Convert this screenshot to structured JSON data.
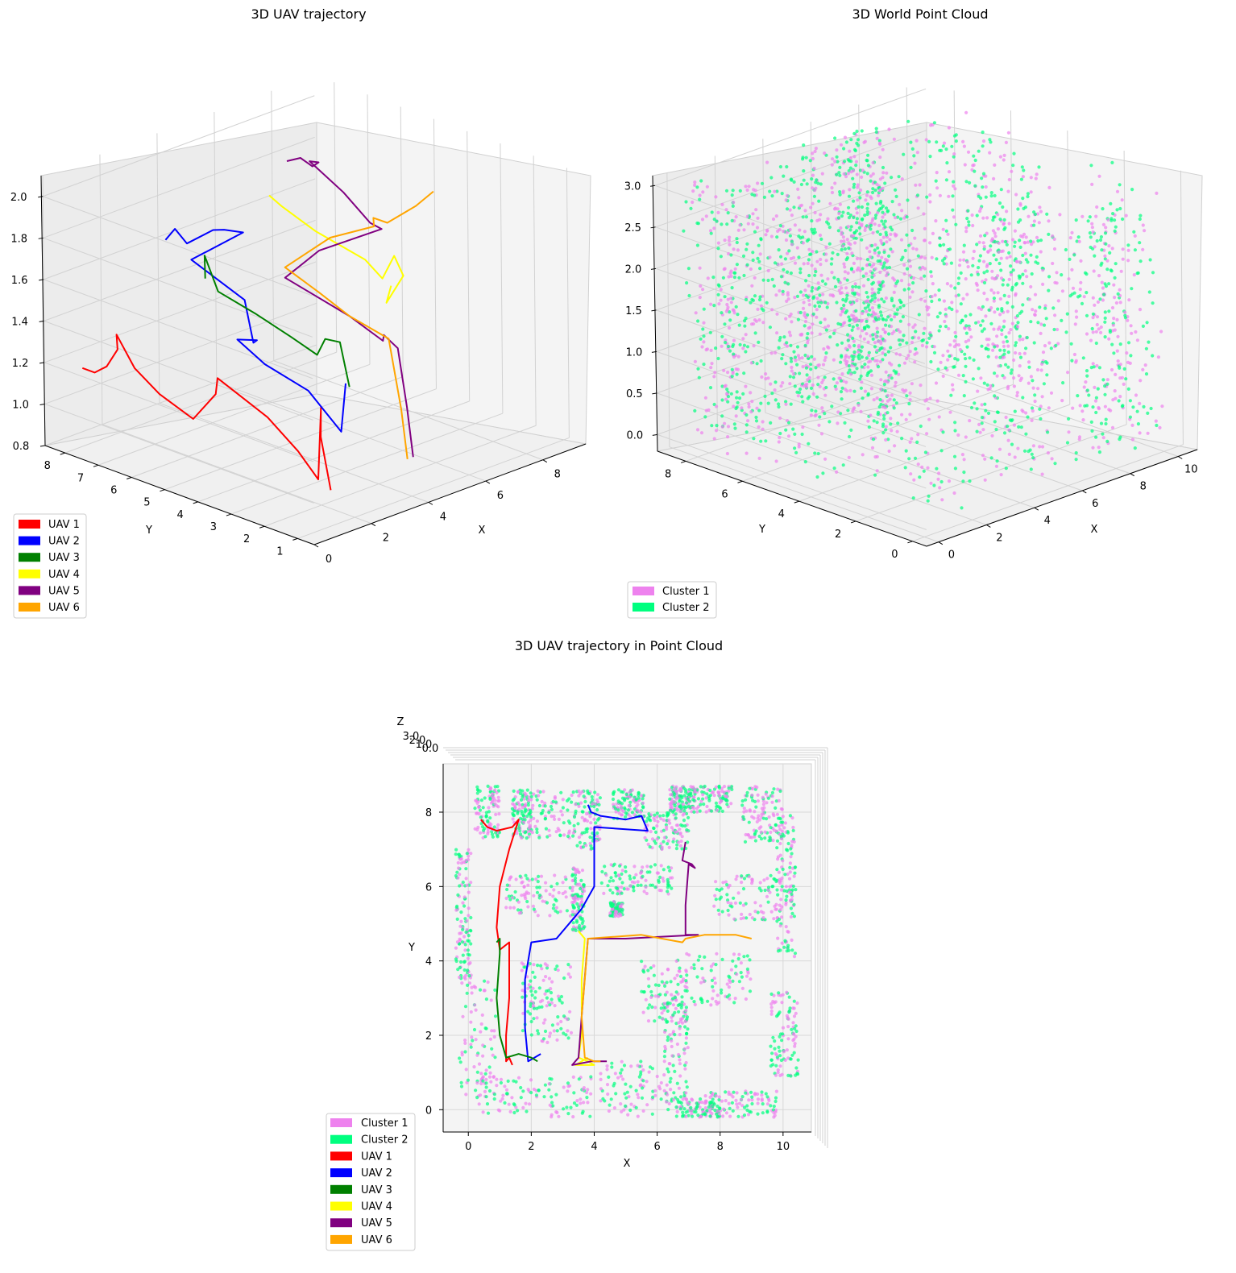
{
  "colors": {
    "UAV 1": "#ff0000",
    "UAV 2": "#0000ff",
    "UAV 3": "#008000",
    "UAV 4": "#ffff00",
    "UAV 5": "#800080",
    "UAV 6": "#ffa500",
    "Cluster 1": "#ee82ee",
    "Cluster 2": "#00ff7f",
    "pane": "#f2f2f2",
    "grid": "#cccccc"
  },
  "chart_data": [
    {
      "type": "line3d",
      "title": "3D UAV trajectory",
      "xlabel": "X",
      "ylabel": "Y",
      "zlabel": "",
      "xlim": [
        0,
        9.5
      ],
      "ylim": [
        0.5,
        8.6
      ],
      "zlim": [
        0.8,
        2.1
      ],
      "x_ticks": [
        "0",
        "2",
        "4",
        "6",
        "8"
      ],
      "y_ticks": [
        "1",
        "2",
        "3",
        "4",
        "5",
        "6",
        "7",
        "8"
      ],
      "z_ticks": [
        "0.8",
        "1.0",
        "1.2",
        "1.4",
        "1.6",
        "1.8",
        "2.0"
      ],
      "legend": [
        "UAV 1",
        "UAV 2",
        "UAV 3",
        "UAV 4",
        "UAV 5",
        "UAV 6"
      ],
      "legend_loc": "lower-left",
      "grid": true,
      "series": [
        {
          "name": "UAV 1",
          "points": [
            [
              0.4,
              7.8,
              1.2
            ],
            [
              0.6,
              7.6,
              1.18
            ],
            [
              0.9,
              7.5,
              1.2
            ],
            [
              1.4,
              7.6,
              1.25
            ],
            [
              1.6,
              7.8,
              1.3
            ],
            [
              1.3,
              7.0,
              1.2
            ],
            [
              1.0,
              6.0,
              1.15
            ],
            [
              0.9,
              4.9,
              1.1
            ],
            [
              1.0,
              4.3,
              1.25
            ],
            [
              1.3,
              4.5,
              1.3
            ],
            [
              1.3,
              3.0,
              1.2
            ],
            [
              1.2,
              2.0,
              1.1
            ],
            [
              1.2,
              1.4,
              1.0
            ],
            [
              1.2,
              1.3,
              1.35
            ],
            [
              1.3,
              1.4,
              1.2
            ],
            [
              1.4,
              1.2,
              0.95
            ]
          ]
        },
        {
          "name": "UAV 2",
          "points": [
            [
              3.8,
              8.2,
              1.62
            ],
            [
              3.9,
              8.0,
              1.68
            ],
            [
              4.2,
              7.9,
              1.6
            ],
            [
              5.0,
              7.8,
              1.63
            ],
            [
              5.5,
              7.9,
              1.6
            ],
            [
              5.7,
              7.5,
              1.6
            ],
            [
              4.0,
              7.6,
              1.55
            ],
            [
              4.0,
              6.0,
              1.45
            ],
            [
              3.6,
              5.4,
              1.3
            ],
            [
              2.8,
              4.6,
              1.4
            ],
            [
              2.0,
              4.5,
              1.45
            ],
            [
              1.8,
              3.5,
              1.4
            ],
            [
              1.8,
              2.2,
              1.35
            ],
            [
              1.9,
              1.3,
              1.2
            ],
            [
              2.3,
              1.5,
              1.4
            ]
          ]
        },
        {
          "name": "UAV 3",
          "points": [
            [
              0.9,
              4.5,
              1.8
            ],
            [
              1.0,
              4.6,
              1.9
            ],
            [
              1.0,
              4.2,
              1.75
            ],
            [
              0.9,
              3.0,
              1.72
            ],
            [
              1.0,
              2.0,
              1.66
            ],
            [
              1.2,
              1.4,
              1.6
            ],
            [
              1.6,
              1.5,
              1.65
            ],
            [
              2.0,
              1.4,
              1.62
            ],
            [
              2.2,
              1.3,
              1.4
            ]
          ]
        },
        {
          "name": "UAV 4",
          "points": [
            [
              3.5,
              4.8,
              2.05
            ],
            [
              3.7,
              4.6,
              2.0
            ],
            [
              3.6,
              3.5,
              1.95
            ],
            [
              3.6,
              2.0,
              1.9
            ],
            [
              3.5,
              1.4,
              1.85
            ],
            [
              3.8,
              1.3,
              1.95
            ],
            [
              4.0,
              1.2,
              1.85
            ],
            [
              3.4,
              1.2,
              1.75
            ],
            [
              3.8,
              1.4,
              1.8
            ]
          ]
        },
        {
          "name": "UAV 5",
          "points": [
            [
              6.9,
              7.2,
              1.9
            ],
            [
              6.8,
              6.7,
              1.95
            ],
            [
              7.1,
              6.6,
              1.9
            ],
            [
              7.2,
              6.5,
              1.92
            ],
            [
              7.0,
              6.6,
              1.93
            ],
            [
              6.9,
              5.5,
              1.85
            ],
            [
              6.9,
              4.7,
              1.75
            ],
            [
              7.3,
              4.7,
              1.7
            ],
            [
              5.0,
              4.6,
              1.72
            ],
            [
              3.8,
              4.6,
              1.65
            ],
            [
              3.6,
              2.5,
              1.6
            ],
            [
              3.5,
              1.4,
              1.55
            ],
            [
              3.3,
              1.2,
              1.6
            ],
            [
              3.9,
              1.3,
              1.5
            ],
            [
              4.2,
              1.3,
              1.2
            ],
            [
              4.4,
              1.3,
              0.95
            ]
          ]
        },
        {
          "name": "UAV 6",
          "points": [
            [
              9.0,
              4.6,
              1.8
            ],
            [
              8.5,
              4.7,
              1.75
            ],
            [
              7.5,
              4.7,
              1.72
            ],
            [
              6.9,
              4.6,
              1.78
            ],
            [
              6.8,
              4.5,
              1.75
            ],
            [
              5.5,
              4.7,
              1.75
            ],
            [
              3.8,
              4.6,
              1.7
            ],
            [
              3.7,
              3.5,
              1.65
            ],
            [
              3.6,
              2.5,
              1.6
            ],
            [
              3.7,
              1.4,
              1.55
            ],
            [
              4.0,
              1.3,
              1.2
            ],
            [
              4.2,
              1.3,
              0.95
            ]
          ]
        }
      ]
    },
    {
      "type": "scatter3d",
      "title": "3D World Point Cloud",
      "xlabel": "X",
      "ylabel": "Y",
      "zlabel": "",
      "xlim": [
        -0.5,
        10.8
      ],
      "ylim": [
        -0.5,
        9.0
      ],
      "zlim": [
        -0.2,
        3.1
      ],
      "x_ticks": [
        "0",
        "2",
        "4",
        "6",
        "8",
        "10"
      ],
      "y_ticks": [
        "0",
        "2",
        "4",
        "6",
        "8"
      ],
      "z_ticks": [
        "0.0",
        "0.5",
        "1.0",
        "1.5",
        "2.0",
        "2.5",
        "3.0"
      ],
      "legend": [
        "Cluster 1",
        "Cluster 2"
      ],
      "legend_loc": "lower-left",
      "grid": true
    },
    {
      "type": "scatter3d+line3d",
      "title": "3D UAV trajectory in Point Cloud",
      "xlabel": "X",
      "ylabel": "Y",
      "zlabel": "Z",
      "xlim": [
        -0.8,
        10.9
      ],
      "ylim": [
        -0.6,
        9.3
      ],
      "x_ticks": [
        "0",
        "2",
        "4",
        "6",
        "8",
        "10"
      ],
      "y_ticks": [
        "0",
        "2",
        "4",
        "6",
        "8"
      ],
      "z_ticks": [
        "3.0",
        "2.0",
        "1.0",
        "0.0"
      ],
      "view": "top-down",
      "legend": [
        "Cluster 1",
        "Cluster 2",
        "UAV 1",
        "UAV 2",
        "UAV 3",
        "UAV 4",
        "UAV 5",
        "UAV 6"
      ],
      "legend_loc": "lower-left",
      "grid": true
    }
  ]
}
